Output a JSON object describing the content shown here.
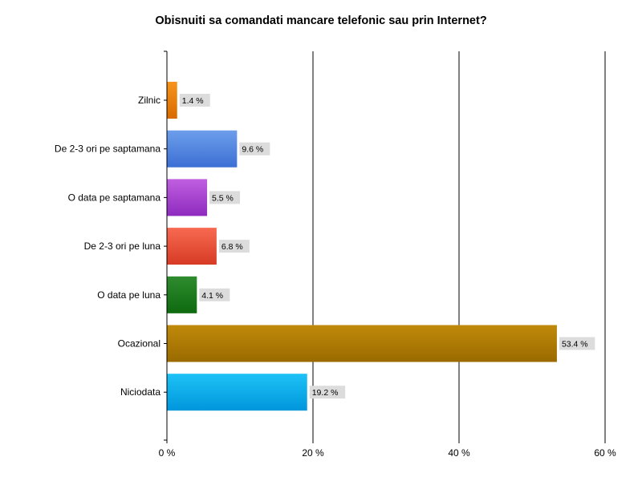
{
  "chart_data": {
    "type": "bar",
    "orientation": "horizontal",
    "title": "Obisnuiti sa comandati mancare telefonic sau prin Internet?",
    "xlabel": "",
    "ylabel": "",
    "xlim": [
      0,
      60
    ],
    "x_ticks": [
      0,
      20,
      40,
      60
    ],
    "x_tick_labels": [
      "0 %",
      "20 %",
      "40 %",
      "60 %"
    ],
    "grid": "vertical",
    "categories": [
      "Zilnic",
      "De 2-3 ori pe saptamana",
      "O data pe saptamana",
      "De 2-3 ori pe luna",
      "O data pe luna",
      "Ocazional",
      "Niciodata"
    ],
    "values": [
      1.4,
      9.6,
      5.5,
      6.8,
      4.1,
      53.4,
      19.2
    ],
    "value_labels": [
      "1.4 %",
      "9.6 %",
      "5.5 %",
      "6.8 %",
      "4.1 %",
      "53.4 %",
      "19.2 %"
    ],
    "colors": [
      [
        "#f7941d",
        "#d86a00"
      ],
      [
        "#6d9eeb",
        "#3c6fd4"
      ],
      [
        "#c05fe0",
        "#8e2bbf"
      ],
      [
        "#f86a52",
        "#d63a24"
      ],
      [
        "#2e8b2e",
        "#0f6a0f"
      ],
      [
        "#c08a0a",
        "#9a6a00"
      ],
      [
        "#1ec2f6",
        "#0096dc"
      ]
    ]
  }
}
